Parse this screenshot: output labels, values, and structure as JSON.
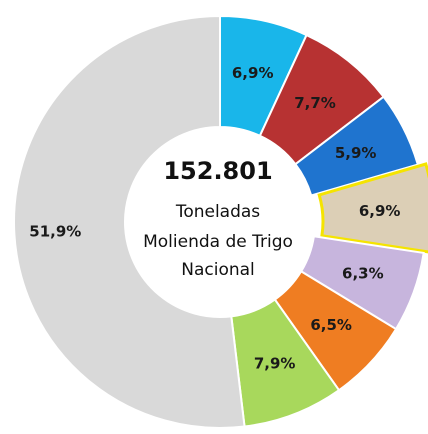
{
  "chart_data": {
    "type": "donut",
    "center_total": "152.801",
    "center_lines": [
      "Toneladas",
      "Molienda de Trigo",
      "Nacional"
    ],
    "categories": [
      null,
      null,
      null,
      null,
      null,
      null,
      null,
      null
    ],
    "values": [
      6.9,
      7.7,
      5.9,
      6.9,
      6.3,
      6.5,
      7.9,
      51.9
    ],
    "value_labels": [
      "6,9%",
      "7,7%",
      "5,9%",
      "6,9%",
      "6,3%",
      "6,5%",
      "7,9%",
      "51,9%"
    ],
    "colors": [
      "#19b6ea",
      "#b73232",
      "#1f74cf",
      "#dccfb6",
      "#c7b5dd",
      "#ef7d22",
      "#a8d85c",
      "#d9d9d9"
    ]
  }
}
